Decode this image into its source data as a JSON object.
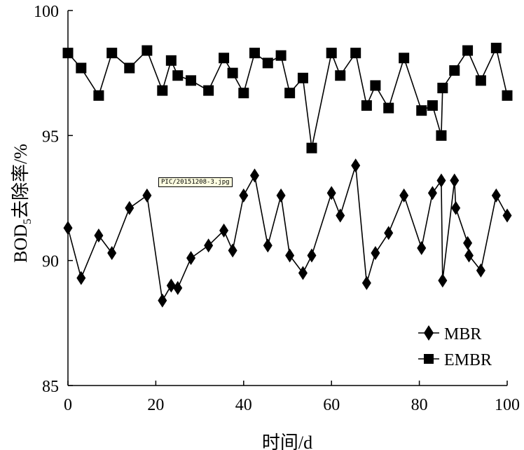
{
  "chart_data": {
    "type": "line",
    "title": "",
    "xlabel": "时间/d",
    "ylabel_main": "BOD",
    "ylabel_sub": "5",
    "ylabel_rest": "去除率/%",
    "xlim": [
      0,
      100
    ],
    "ylim": [
      85,
      100
    ],
    "xticks": [
      0,
      20,
      40,
      60,
      80,
      100
    ],
    "yticks": [
      85,
      90,
      95,
      100
    ],
    "legend_position": "bottom-right",
    "series": [
      {
        "name": "MBR",
        "marker": "diamond",
        "x": [
          0,
          3,
          7,
          10,
          14,
          18,
          21.5,
          23.5,
          25,
          28,
          32,
          35.5,
          37.5,
          40,
          42.5,
          45.5,
          48.5,
          50.5,
          53.5,
          55.5,
          60,
          62,
          65.5,
          68,
          70,
          73,
          76.5,
          80.5,
          83,
          85,
          85.3,
          88,
          88.3,
          91,
          91.3,
          94,
          97.5,
          100
        ],
        "values": [
          91.3,
          89.3,
          91.0,
          90.3,
          92.1,
          92.6,
          88.4,
          89.0,
          88.9,
          90.1,
          90.6,
          91.2,
          90.4,
          92.6,
          93.4,
          90.6,
          92.6,
          90.2,
          89.5,
          90.2,
          92.7,
          91.8,
          93.8,
          89.1,
          90.3,
          91.1,
          92.6,
          90.5,
          92.7,
          93.2,
          89.2,
          93.2,
          92.1,
          90.7,
          90.2,
          89.6,
          92.6,
          91.8
        ]
      },
      {
        "name": "EMBR",
        "marker": "square",
        "x": [
          0,
          3,
          7,
          10,
          14,
          18,
          21.5,
          23.5,
          25,
          28,
          32,
          35.5,
          37.5,
          40,
          42.5,
          45.5,
          48.5,
          50.5,
          53.5,
          55.5,
          60,
          62,
          65.5,
          68,
          70,
          73,
          76.5,
          80.5,
          83,
          85,
          85.3,
          88,
          91,
          94,
          97.5,
          100
        ],
        "values": [
          98.3,
          97.7,
          96.6,
          98.3,
          97.7,
          98.4,
          96.8,
          98.0,
          97.4,
          97.2,
          96.8,
          98.1,
          97.5,
          96.7,
          98.3,
          97.9,
          98.2,
          96.7,
          97.3,
          94.5,
          98.3,
          97.4,
          98.3,
          96.2,
          97.0,
          96.1,
          98.1,
          96.0,
          96.2,
          95.0,
          96.9,
          97.6,
          98.4,
          97.2,
          98.5,
          96.6
        ]
      }
    ]
  },
  "tooltip": "PIC/20151208-3.jpg"
}
